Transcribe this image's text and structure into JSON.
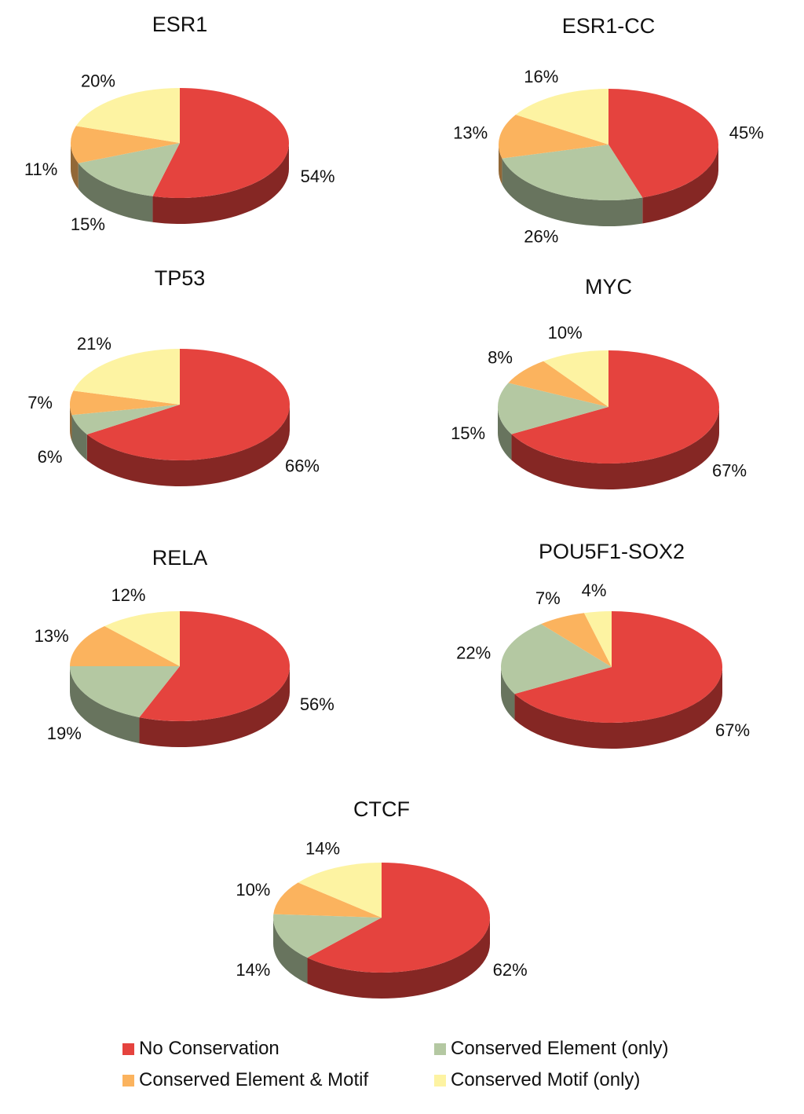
{
  "colors": {
    "no_conservation": "#e5433e",
    "conserved_element_only": "#b4c8a2",
    "conserved_element_and_motif": "#fbb35e",
    "conserved_motif_only": "#fdf3a2"
  },
  "chart_data": [
    {
      "type": "pie",
      "title": "ESR1",
      "slices": [
        {
          "category": "No Conservation",
          "value": 54,
          "label": "54%"
        },
        {
          "category": "Conserved Element (only)",
          "value": 15,
          "label": "15%"
        },
        {
          "category": "Conserved Element & Motif",
          "value": 11,
          "label": "11%"
        },
        {
          "category": "Conserved Motif (only)",
          "value": 20,
          "label": "20%"
        }
      ]
    },
    {
      "type": "pie",
      "title": "ESR1-CC",
      "slices": [
        {
          "category": "No Conservation",
          "value": 45,
          "label": "45%"
        },
        {
          "category": "Conserved Element (only)",
          "value": 26,
          "label": "26%"
        },
        {
          "category": "Conserved Element & Motif",
          "value": 13,
          "label": "13%"
        },
        {
          "category": "Conserved Motif (only)",
          "value": 16,
          "label": "16%"
        }
      ]
    },
    {
      "type": "pie",
      "title": "TP53",
      "slices": [
        {
          "category": "No Conservation",
          "value": 66,
          "label": "66%"
        },
        {
          "category": "Conserved Element (only)",
          "value": 6,
          "label": "6%"
        },
        {
          "category": "Conserved Element & Motif",
          "value": 7,
          "label": "7%"
        },
        {
          "category": "Conserved Motif (only)",
          "value": 21,
          "label": "21%"
        }
      ]
    },
    {
      "type": "pie",
      "title": "MYC",
      "slices": [
        {
          "category": "No Conservation",
          "value": 67,
          "label": "67%"
        },
        {
          "category": "Conserved Element (only)",
          "value": 15,
          "label": "15%"
        },
        {
          "category": "Conserved Element & Motif",
          "value": 8,
          "label": "8%"
        },
        {
          "category": "Conserved Motif (only)",
          "value": 10,
          "label": "10%"
        }
      ]
    },
    {
      "type": "pie",
      "title": "RELA",
      "slices": [
        {
          "category": "No Conservation",
          "value": 56,
          "label": "56%"
        },
        {
          "category": "Conserved Element (only)",
          "value": 19,
          "label": "19%"
        },
        {
          "category": "Conserved Element & Motif",
          "value": 13,
          "label": "13%"
        },
        {
          "category": "Conserved Motif (only)",
          "value": 12,
          "label": "12%"
        }
      ]
    },
    {
      "type": "pie",
      "title": "POU5F1-SOX2",
      "slices": [
        {
          "category": "No Conservation",
          "value": 67,
          "label": "67%"
        },
        {
          "category": "Conserved Element (only)",
          "value": 22,
          "label": "22%"
        },
        {
          "category": "Conserved Element & Motif",
          "value": 7,
          "label": "7%"
        },
        {
          "category": "Conserved Motif (only)",
          "value": 4,
          "label": "4%"
        }
      ]
    },
    {
      "type": "pie",
      "title": "CTCF",
      "slices": [
        {
          "category": "No Conservation",
          "value": 62,
          "label": "62%"
        },
        {
          "category": "Conserved Element (only)",
          "value": 14,
          "label": "14%"
        },
        {
          "category": "Conserved Element & Motif",
          "value": 10,
          "label": "10%"
        },
        {
          "category": "Conserved Motif (only)",
          "value": 14,
          "label": "14%"
        }
      ]
    }
  ],
  "legend": {
    "placement": "bottom",
    "items": [
      {
        "label": "No Conservation",
        "color": "#e5433e"
      },
      {
        "label": "Conserved Element (only)",
        "color": "#b4c8a2"
      },
      {
        "label": "Conserved Element & Motif",
        "color": "#fbb35e"
      },
      {
        "label": "Conserved Motif (only)",
        "color": "#fdf3a2"
      }
    ]
  }
}
